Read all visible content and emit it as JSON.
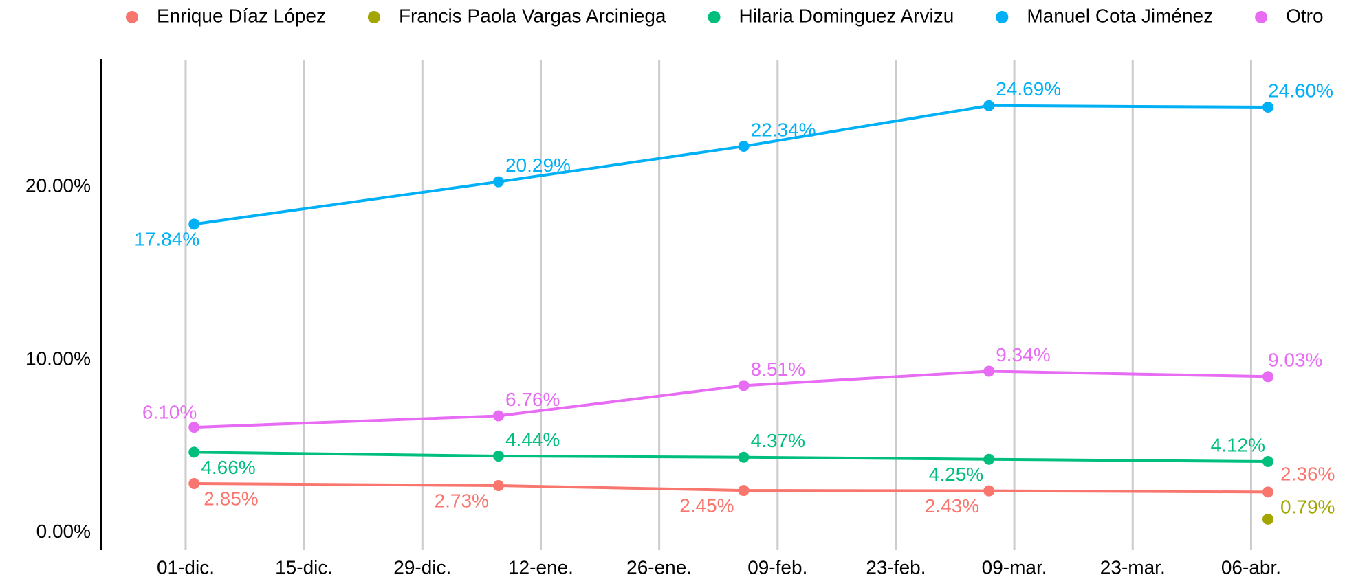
{
  "chart_data": {
    "type": "line",
    "x": [
      "02-dic.",
      "07-ene.",
      "05-feb.",
      "06-mar.",
      "08-abr."
    ],
    "xlim": [
      "21-nov.",
      "18-abr."
    ],
    "xticks": [
      "01-dic.",
      "15-dic.",
      "29-dic.",
      "12-ene.",
      "26-ene.",
      "09-feb.",
      "23-feb.",
      "09-mar.",
      "23-mar.",
      "06-abr."
    ],
    "ylim": [
      -1,
      27.3
    ],
    "yticks": [
      {
        "value": 0,
        "label": "0.00%"
      },
      {
        "value": 10,
        "label": "10.00%"
      },
      {
        "value": 20,
        "label": "20.00%"
      }
    ],
    "grid": "x",
    "legend": "top",
    "series": [
      {
        "name": "Enrique Díaz López",
        "color": "#f8766d",
        "values": [
          2.85,
          2.73,
          2.45,
          2.43,
          2.36
        ],
        "value_labels": [
          "2.85%",
          "2.73%",
          "2.45%",
          "2.43%",
          "2.36%"
        ]
      },
      {
        "name": "Francis Paola Vargas Arciniega",
        "color": "#a3a500",
        "values": [
          null,
          null,
          null,
          null,
          0.79
        ],
        "value_labels": [
          null,
          null,
          null,
          null,
          "0.79%"
        ]
      },
      {
        "name": "Hilaria Dominguez Arvizu",
        "color": "#00bf7d",
        "values": [
          4.66,
          4.44,
          4.37,
          4.25,
          4.12
        ],
        "value_labels": [
          "4.66%",
          "4.44%",
          "4.37%",
          "4.25%",
          "4.12%"
        ]
      },
      {
        "name": "Manuel Cota Jiménez",
        "color": "#00b0f6",
        "values": [
          17.84,
          20.29,
          22.34,
          24.69,
          24.6
        ],
        "value_labels": [
          "17.84%",
          "20.29%",
          "22.34%",
          "24.69%",
          "24.60%"
        ]
      },
      {
        "name": "Otro",
        "color": "#e76bf3",
        "values": [
          6.1,
          6.76,
          8.51,
          9.34,
          9.03
        ],
        "value_labels": [
          "6.10%",
          "6.76%",
          "8.51%",
          "9.34%",
          "9.03%"
        ]
      }
    ]
  }
}
